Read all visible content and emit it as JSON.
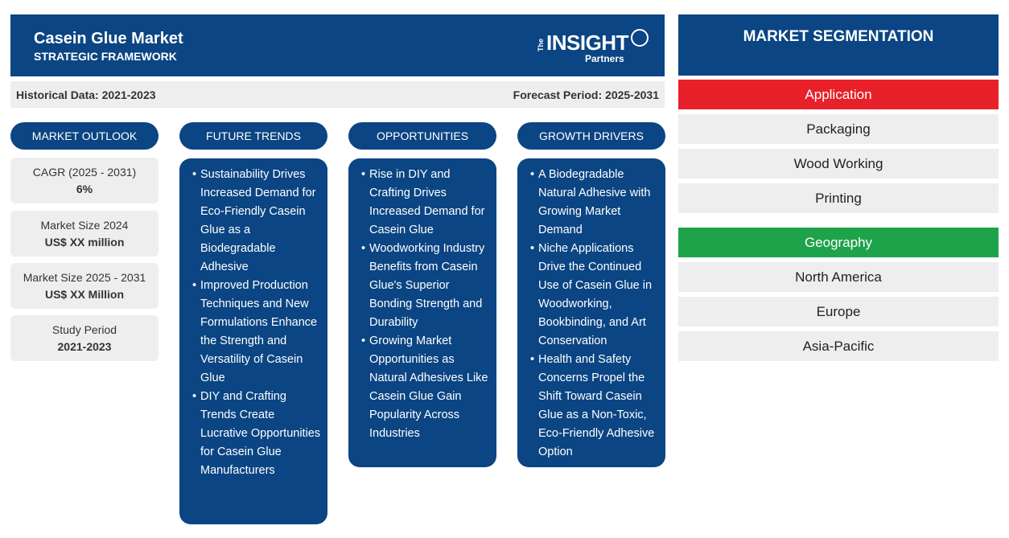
{
  "header": {
    "title": "Casein Glue Market",
    "subtitle": "STRATEGIC FRAMEWORK",
    "logo": {
      "the": "The",
      "insight": "INSIGHT",
      "partners": "Partners"
    }
  },
  "periods": {
    "historical": "Historical Data: 2021-2023",
    "forecast": "Forecast Period: 2025-2031"
  },
  "columns": {
    "market_outlook": "MARKET OUTLOOK",
    "future_trends": "FUTURE TRENDS",
    "opportunities": "OPPORTUNITIES",
    "growth_drivers": "GROWTH DRIVERS"
  },
  "outlook": [
    {
      "label": "CAGR (2025 - 2031)",
      "value": "6%"
    },
    {
      "label": "Market Size 2024",
      "value": "US$ XX million"
    },
    {
      "label": "Market Size 2025 - 2031",
      "value": "US$ XX Million"
    },
    {
      "label": "Study Period",
      "value": "2021-2023"
    }
  ],
  "future_trends": [
    "Sustainability Drives Increased Demand for Eco-Friendly Casein Glue as a Biodegradable Adhesive",
    "Improved Production Techniques and New Formulations Enhance the Strength and Versatility of Casein Glue",
    "DIY and Crafting Trends Create Lucrative Opportunities for Casein Glue Manufacturers"
  ],
  "opportunities": [
    "Rise in DIY and Crafting Drives Increased Demand for Casein Glue",
    "Woodworking Industry Benefits from Casein Glue's Superior Bonding Strength and Durability",
    "Growing Market Opportunities as Natural Adhesives Like Casein Glue Gain Popularity Across Industries"
  ],
  "growth_drivers": [
    "A Biodegradable Natural Adhesive with Growing Market Demand",
    "Niche Applications Drive the Continued Use of Casein Glue in Woodworking, Bookbinding, and Art Conservation",
    "Health and Safety Concerns Propel the Shift Toward Casein Glue as a Non-Toxic, Eco-Friendly Adhesive Option"
  ],
  "segmentation": {
    "title": "MARKET SEGMENTATION",
    "application": {
      "label": "Application",
      "color": "#e8202a",
      "items": [
        "Packaging",
        "Wood Working",
        "Printing"
      ]
    },
    "geography": {
      "label": "Geography",
      "color": "#1ea34a",
      "items": [
        "North America",
        "Europe",
        "Asia-Pacific"
      ]
    }
  }
}
